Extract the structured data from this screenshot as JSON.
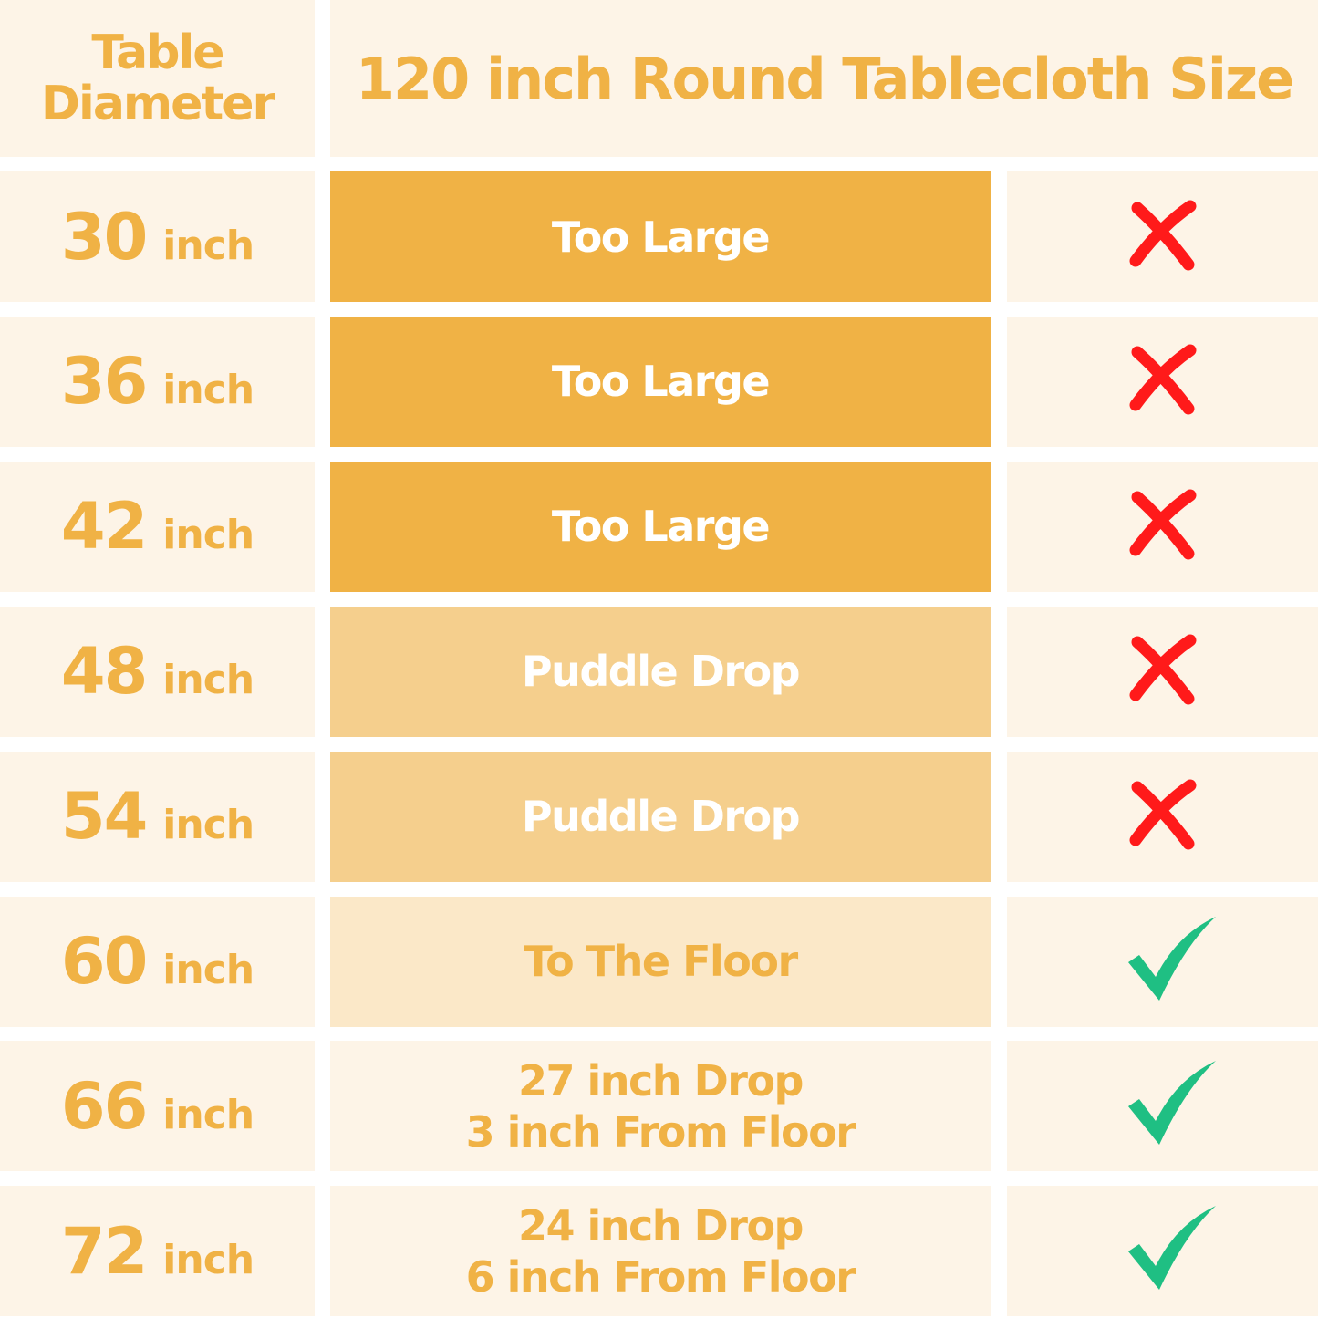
{
  "header": {
    "col1": [
      "Table",
      "Diameter"
    ],
    "col2": "120 inch Round Tablecloth Size"
  },
  "colors": {
    "text_accent": "#f0b245",
    "too_large_bg": "#f0b245",
    "puddle_bg": "#f5cf8d",
    "floor_bg": "#fbe8c8",
    "cell_bg": "#fdf4e7",
    "cross": "#ff1a1a",
    "check": "#1fbf83"
  },
  "rows": [
    {
      "diameter": "30",
      "unit": "inch",
      "fit": [
        "Too Large"
      ],
      "style": "too_large",
      "suitable": false,
      "icon": "cross-icon"
    },
    {
      "diameter": "36",
      "unit": "inch",
      "fit": [
        "Too Large"
      ],
      "style": "too_large",
      "suitable": false,
      "icon": "cross-icon"
    },
    {
      "diameter": "42",
      "unit": "inch",
      "fit": [
        "Too Large"
      ],
      "style": "too_large",
      "suitable": false,
      "icon": "cross-icon"
    },
    {
      "diameter": "48",
      "unit": "inch",
      "fit": [
        "Puddle Drop"
      ],
      "style": "puddle",
      "suitable": false,
      "icon": "cross-icon"
    },
    {
      "diameter": "54",
      "unit": "inch",
      "fit": [
        "Puddle Drop"
      ],
      "style": "puddle",
      "suitable": false,
      "icon": "cross-icon"
    },
    {
      "diameter": "60",
      "unit": "inch",
      "fit": [
        "To The Floor"
      ],
      "style": "floor",
      "suitable": true,
      "icon": "check-icon"
    },
    {
      "diameter": "66",
      "unit": "inch",
      "fit": [
        "27 inch Drop",
        "3 inch From Floor"
      ],
      "style": "plain",
      "suitable": true,
      "icon": "check-icon"
    },
    {
      "diameter": "72",
      "unit": "inch",
      "fit": [
        "24 inch Drop",
        "6 inch From Floor"
      ],
      "style": "plain",
      "suitable": true,
      "icon": "check-icon"
    }
  ]
}
